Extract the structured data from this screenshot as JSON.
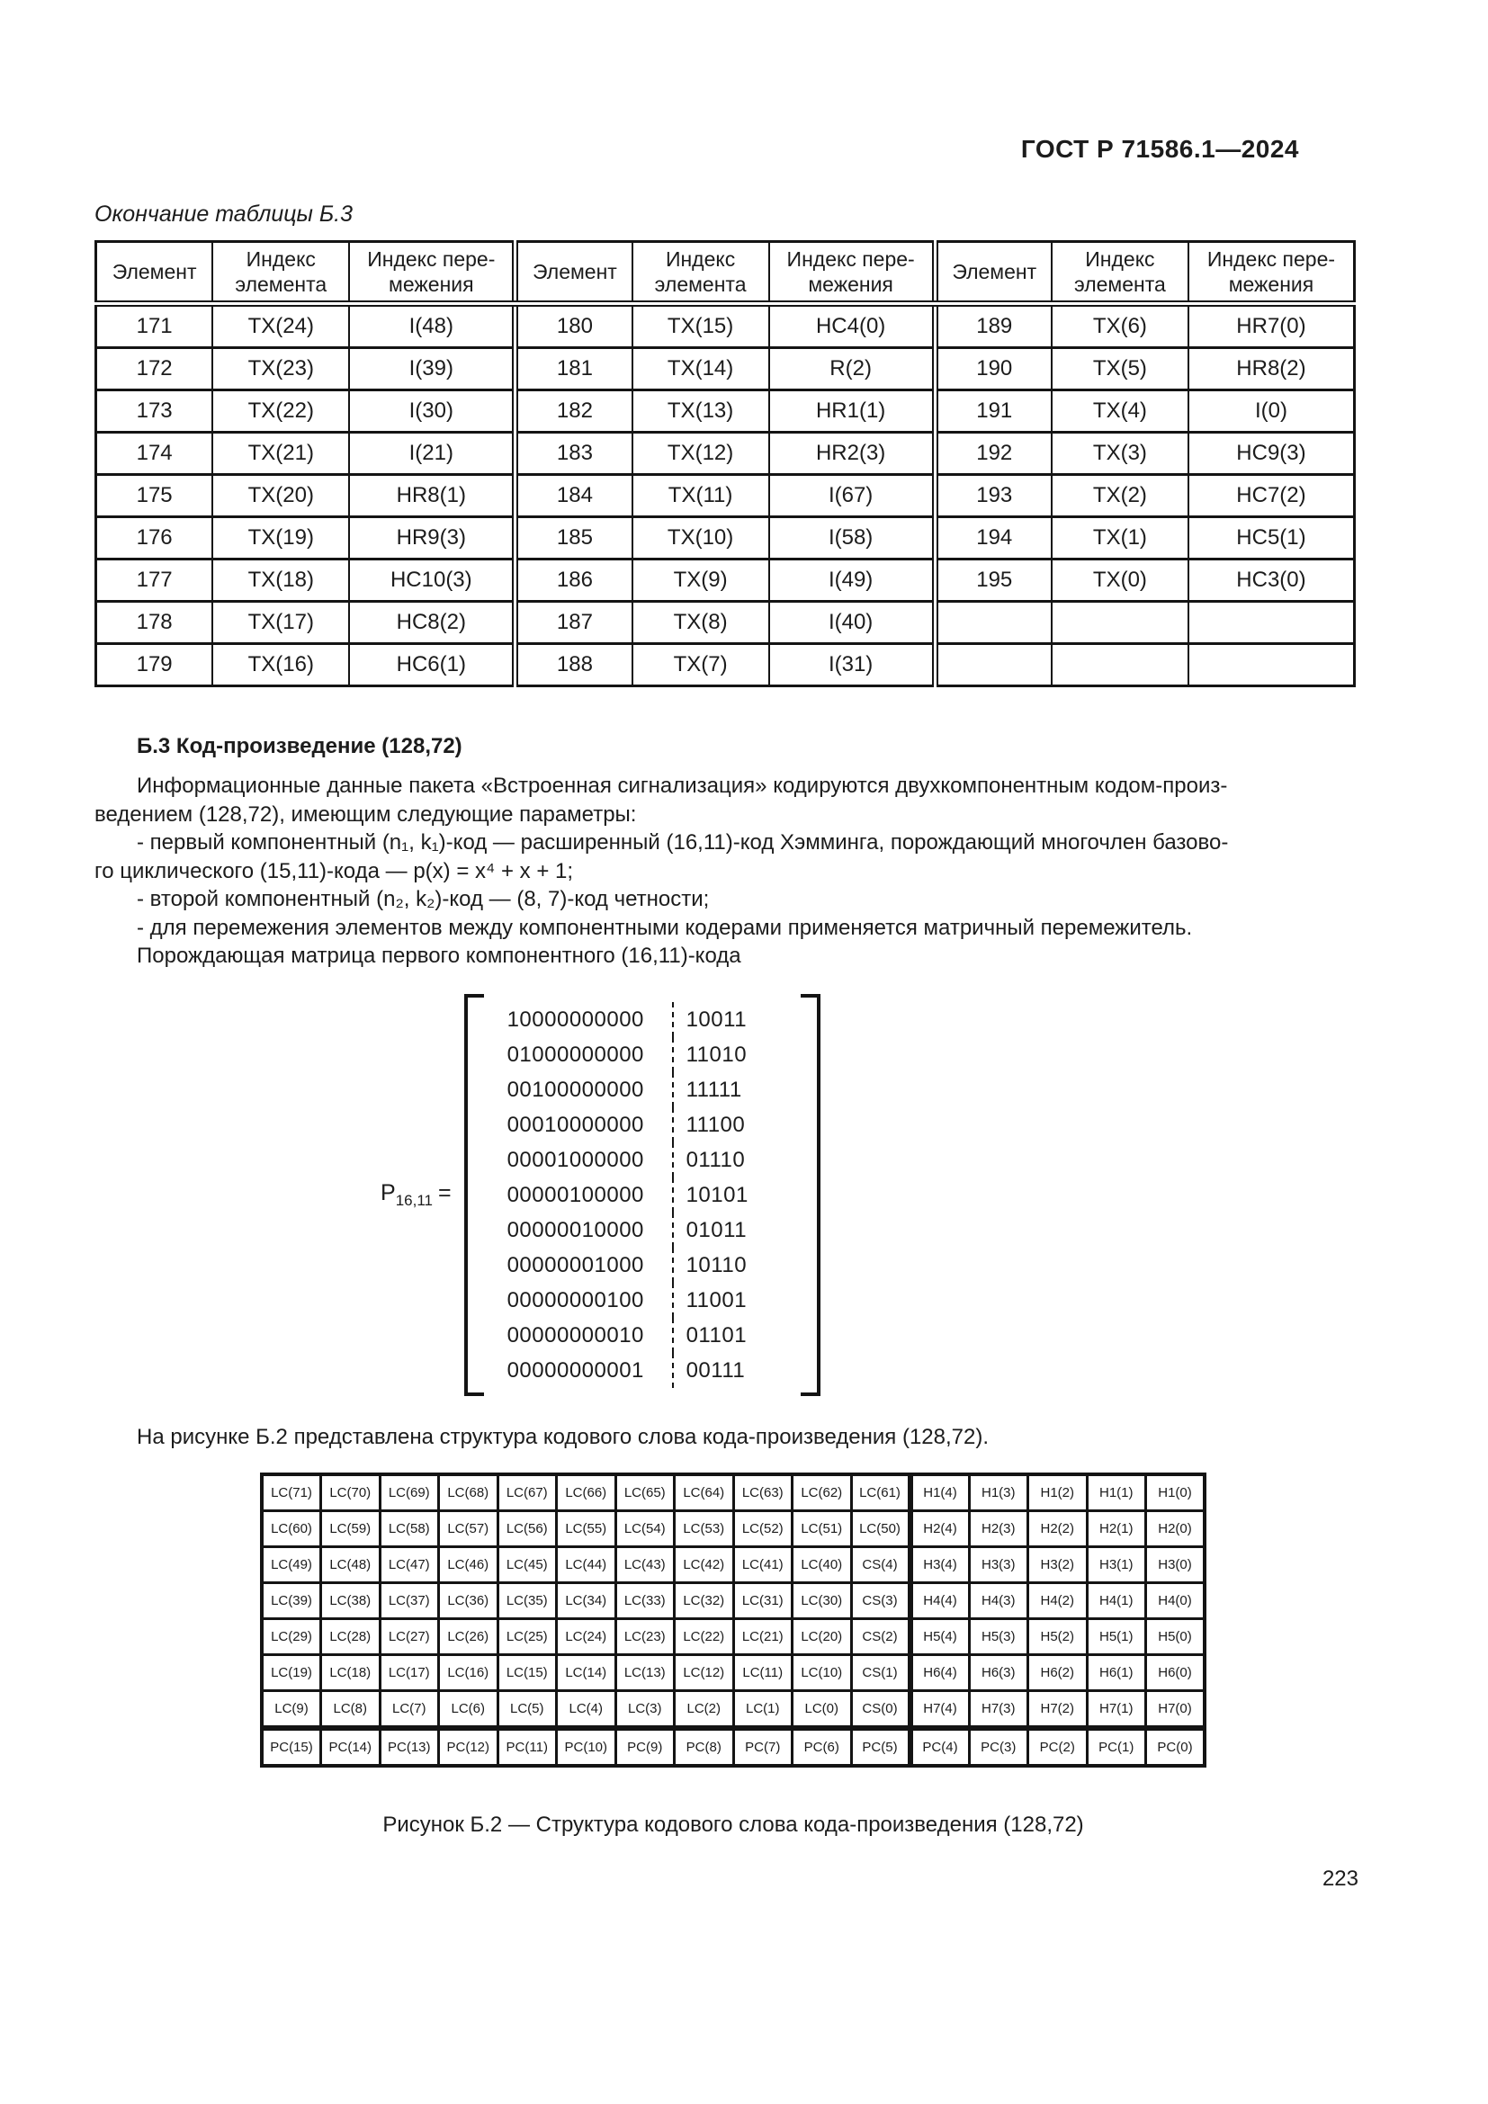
{
  "page": {
    "doc_code": "ГОСТ Р 71586.1—2024",
    "page_number": "223"
  },
  "table_continuation": {
    "caption": "Окончание таблицы Б.3",
    "group_headers": [
      "Элемент",
      "Индекс\nэлемента",
      "Индекс пере-\nмежения"
    ],
    "rows": [
      [
        "171",
        "TX(24)",
        "I(48)",
        "180",
        "TX(15)",
        "HC4(0)",
        "189",
        "TX(6)",
        "HR7(0)"
      ],
      [
        "172",
        "TX(23)",
        "I(39)",
        "181",
        "TX(14)",
        "R(2)",
        "190",
        "TX(5)",
        "HR8(2)"
      ],
      [
        "173",
        "TX(22)",
        "I(30)",
        "182",
        "TX(13)",
        "HR1(1)",
        "191",
        "TX(4)",
        "I(0)"
      ],
      [
        "174",
        "TX(21)",
        "I(21)",
        "183",
        "TX(12)",
        "HR2(3)",
        "192",
        "TX(3)",
        "HC9(3)"
      ],
      [
        "175",
        "TX(20)",
        "HR8(1)",
        "184",
        "TX(11)",
        "I(67)",
        "193",
        "TX(2)",
        "HC7(2)"
      ],
      [
        "176",
        "TX(19)",
        "HR9(3)",
        "185",
        "TX(10)",
        "I(58)",
        "194",
        "TX(1)",
        "HC5(1)"
      ],
      [
        "177",
        "TX(18)",
        "HC10(3)",
        "186",
        "TX(9)",
        "I(49)",
        "195",
        "TX(0)",
        "HC3(0)"
      ],
      [
        "178",
        "TX(17)",
        "HC8(2)",
        "187",
        "TX(8)",
        "I(40)",
        "",
        "",
        ""
      ],
      [
        "179",
        "TX(16)",
        "HC6(1)",
        "188",
        "TX(7)",
        "I(31)",
        "",
        "",
        ""
      ]
    ]
  },
  "section": {
    "heading": "Б.3 Код-произведение (128,72)",
    "lines": [
      {
        "indent": true,
        "text": "Информационные данные пакета «Встроенная сигнализация» кодируются двухкомпонентным кодом-произ-"
      },
      {
        "indent": false,
        "text": "ведением (128,72), имеющим следующие параметры:"
      },
      {
        "indent": true,
        "text": "- первый компонентный (n₁, k₁)-код — расширенный (16,11)-код Хэмминга, порождающий многочлен базово-"
      },
      {
        "indent": false,
        "text": "го циклического (15,11)-кода — p(x) = x⁴ + x + 1;"
      },
      {
        "indent": true,
        "text": "- второй компонентный (n₂, k₂)-код — (8, 7)-код четности;"
      },
      {
        "indent": true,
        "text": "- для перемежения элементов между компонентными кодерами применяется матричный перемежитель."
      },
      {
        "indent": true,
        "text": "Порождающая матрица первого компонентного (16,11)-кода"
      }
    ]
  },
  "matrix": {
    "label_base": "P",
    "label_sub": "16,11",
    "equals": "=",
    "rows": [
      {
        "identity": "10000000000",
        "parity": "10011"
      },
      {
        "identity": "01000000000",
        "parity": "11010"
      },
      {
        "identity": "00100000000",
        "parity": "11111"
      },
      {
        "identity": "00010000000",
        "parity": "11100"
      },
      {
        "identity": "00001000000",
        "parity": "01110"
      },
      {
        "identity": "00000100000",
        "parity": "10101"
      },
      {
        "identity": "00000010000",
        "parity": "01011"
      },
      {
        "identity": "00000001000",
        "parity": "10110"
      },
      {
        "identity": "00000000100",
        "parity": "11001"
      },
      {
        "identity": "00000000010",
        "parity": "01101"
      },
      {
        "identity": "00000000001",
        "parity": "00111"
      }
    ]
  },
  "figure_intro": "На рисунке Б.2 представлена структура кодового слова кода-произведения (128,72).",
  "figure": {
    "caption": "Рисунок Б.2 — Структура кодового слова кода-произведения (128,72)",
    "rows": [
      [
        "LC(71)",
        "LC(70)",
        "LC(69)",
        "LC(68)",
        "LC(67)",
        "LC(66)",
        "LC(65)",
        "LC(64)",
        "LC(63)",
        "LC(62)",
        "LC(61)",
        "H1(4)",
        "H1(3)",
        "H1(2)",
        "H1(1)",
        "H1(0)"
      ],
      [
        "LC(60)",
        "LC(59)",
        "LC(58)",
        "LC(57)",
        "LC(56)",
        "LC(55)",
        "LC(54)",
        "LC(53)",
        "LC(52)",
        "LC(51)",
        "LC(50)",
        "H2(4)",
        "H2(3)",
        "H2(2)",
        "H2(1)",
        "H2(0)"
      ],
      [
        "LC(49)",
        "LC(48)",
        "LC(47)",
        "LC(46)",
        "LC(45)",
        "LC(44)",
        "LC(43)",
        "LC(42)",
        "LC(41)",
        "LC(40)",
        "CS(4)",
        "H3(4)",
        "H3(3)",
        "H3(2)",
        "H3(1)",
        "H3(0)"
      ],
      [
        "LC(39)",
        "LC(38)",
        "LC(37)",
        "LC(36)",
        "LC(35)",
        "LC(34)",
        "LC(33)",
        "LC(32)",
        "LC(31)",
        "LC(30)",
        "CS(3)",
        "H4(4)",
        "H4(3)",
        "H4(2)",
        "H4(1)",
        "H4(0)"
      ],
      [
        "LC(29)",
        "LC(28)",
        "LC(27)",
        "LC(26)",
        "LC(25)",
        "LC(24)",
        "LC(23)",
        "LC(22)",
        "LC(21)",
        "LC(20)",
        "CS(2)",
        "H5(4)",
        "H5(3)",
        "H5(2)",
        "H5(1)",
        "H5(0)"
      ],
      [
        "LC(19)",
        "LC(18)",
        "LC(17)",
        "LC(16)",
        "LC(15)",
        "LC(14)",
        "LC(13)",
        "LC(12)",
        "LC(11)",
        "LC(10)",
        "CS(1)",
        "H6(4)",
        "H6(3)",
        "H6(2)",
        "H6(1)",
        "H6(0)"
      ],
      [
        "LC(9)",
        "LC(8)",
        "LC(7)",
        "LC(6)",
        "LC(5)",
        "LC(4)",
        "LC(3)",
        "LC(2)",
        "LC(1)",
        "LC(0)",
        "CS(0)",
        "H7(4)",
        "H7(3)",
        "H7(2)",
        "H7(1)",
        "H7(0)"
      ],
      [
        "PC(15)",
        "PC(14)",
        "PC(13)",
        "PC(12)",
        "PC(11)",
        "PC(10)",
        "PC(9)",
        "PC(8)",
        "PC(7)",
        "PC(6)",
        "PC(5)",
        "PC(4)",
        "PC(3)",
        "PC(2)",
        "PC(1)",
        "PC(0)"
      ]
    ]
  }
}
